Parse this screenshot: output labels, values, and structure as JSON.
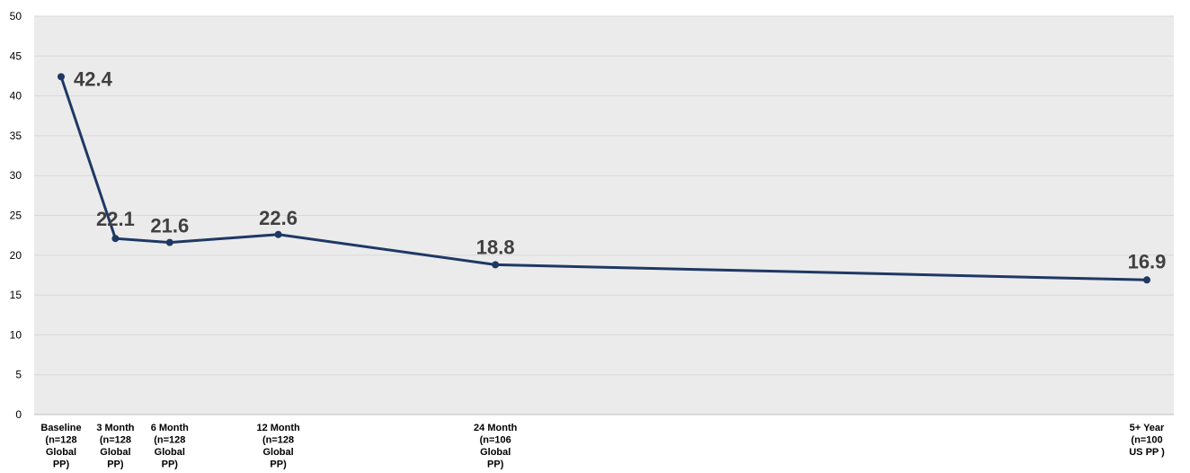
{
  "chart_data": {
    "type": "line",
    "categories": [
      [
        "Baseline",
        "(n=128",
        "Global",
        "PP)"
      ],
      [
        "3 Month",
        "(n=128",
        "Global",
        "PP)"
      ],
      [
        "6 Month",
        "(n=128",
        "Global",
        "PP)"
      ],
      [
        "12 Month",
        "(n=128",
        "Global",
        "PP)"
      ],
      [
        "24 Month",
        "(n=106",
        "Global",
        "PP)"
      ],
      [
        "5+ Year",
        "(n=100",
        "US PP )"
      ]
    ],
    "x_months": [
      0,
      3,
      6,
      12,
      24,
      60
    ],
    "values": [
      42.4,
      22.1,
      21.6,
      22.6,
      18.8,
      16.9
    ],
    "data_labels": [
      "42.4",
      "22.1",
      "21.6",
      "22.6",
      "18.8",
      "16.9"
    ],
    "ylim": [
      0,
      50
    ],
    "yticks": [
      0,
      5,
      10,
      15,
      20,
      25,
      30,
      35,
      40,
      45,
      50
    ],
    "grid": true,
    "title": "",
    "xlabel": "",
    "ylabel": "",
    "colors": {
      "line": "#1f3864",
      "plot_background": "#ebebeb",
      "gridline": "#d9d9d9",
      "label_text": "#404040"
    }
  }
}
